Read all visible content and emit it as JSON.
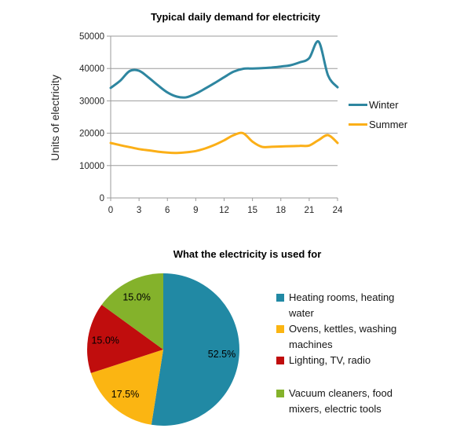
{
  "page": {
    "background": "#ffffff"
  },
  "styles": {
    "axis_color": "#9b9b9b",
    "tick_text_color": "#262626",
    "title_color": "#000000"
  },
  "chart_data": [
    {
      "type": "line",
      "title": "Typical daily demand for electricity",
      "xlabel": "",
      "ylabel": "Units of electricity",
      "xlim": [
        0,
        24
      ],
      "ylim": [
        0,
        50000
      ],
      "x_ticks": [
        0,
        3,
        6,
        9,
        12,
        15,
        18,
        21,
        24
      ],
      "y_ticks": [
        0,
        10000,
        20000,
        30000,
        40000,
        50000
      ],
      "grid": "horizontal-only",
      "legend_position": "right",
      "line_style": "smooth",
      "x": [
        0,
        1,
        2,
        3,
        4,
        5,
        6,
        7,
        8,
        9,
        10,
        11,
        12,
        13,
        14,
        15,
        16,
        17,
        18,
        19,
        20,
        21,
        22,
        23,
        24
      ],
      "series": [
        {
          "name": "Winter",
          "color": "#2E86A0",
          "values": [
            34000,
            36200,
            39200,
            39300,
            37200,
            34800,
            32600,
            31300,
            31100,
            32200,
            33800,
            35500,
            37300,
            39000,
            39900,
            40000,
            40100,
            40300,
            40600,
            41000,
            41900,
            43200,
            48300,
            37800,
            34200
          ]
        },
        {
          "name": "Summer",
          "color": "#FBAF17",
          "values": [
            17000,
            16300,
            15700,
            15100,
            14700,
            14300,
            14000,
            13900,
            14100,
            14500,
            15300,
            16400,
            17800,
            19400,
            20000,
            17400,
            15800,
            15800,
            15900,
            16000,
            16100,
            16200,
            17900,
            19400,
            17000
          ]
        }
      ]
    },
    {
      "type": "pie",
      "title": "What the electricity is used for",
      "rotation": "starts at 12 o'clock, clockwise",
      "legend_position": "right",
      "slices": [
        {
          "label": "Heating rooms, heating water",
          "value": 52.5,
          "display": "52.5%",
          "color": "#2189A4"
        },
        {
          "label": "Ovens, kettles, washing machines",
          "value": 17.5,
          "display": "17.5%",
          "color": "#FBB512"
        },
        {
          "label": "Lighting, TV, radio",
          "value": 15.0,
          "display": "15.0%",
          "color": "#C00D0D"
        },
        {
          "label": "Vacuum cleaners, food mixers, electric tools",
          "value": 15.0,
          "display": "15.0%",
          "color": "#84B22B"
        }
      ]
    }
  ]
}
